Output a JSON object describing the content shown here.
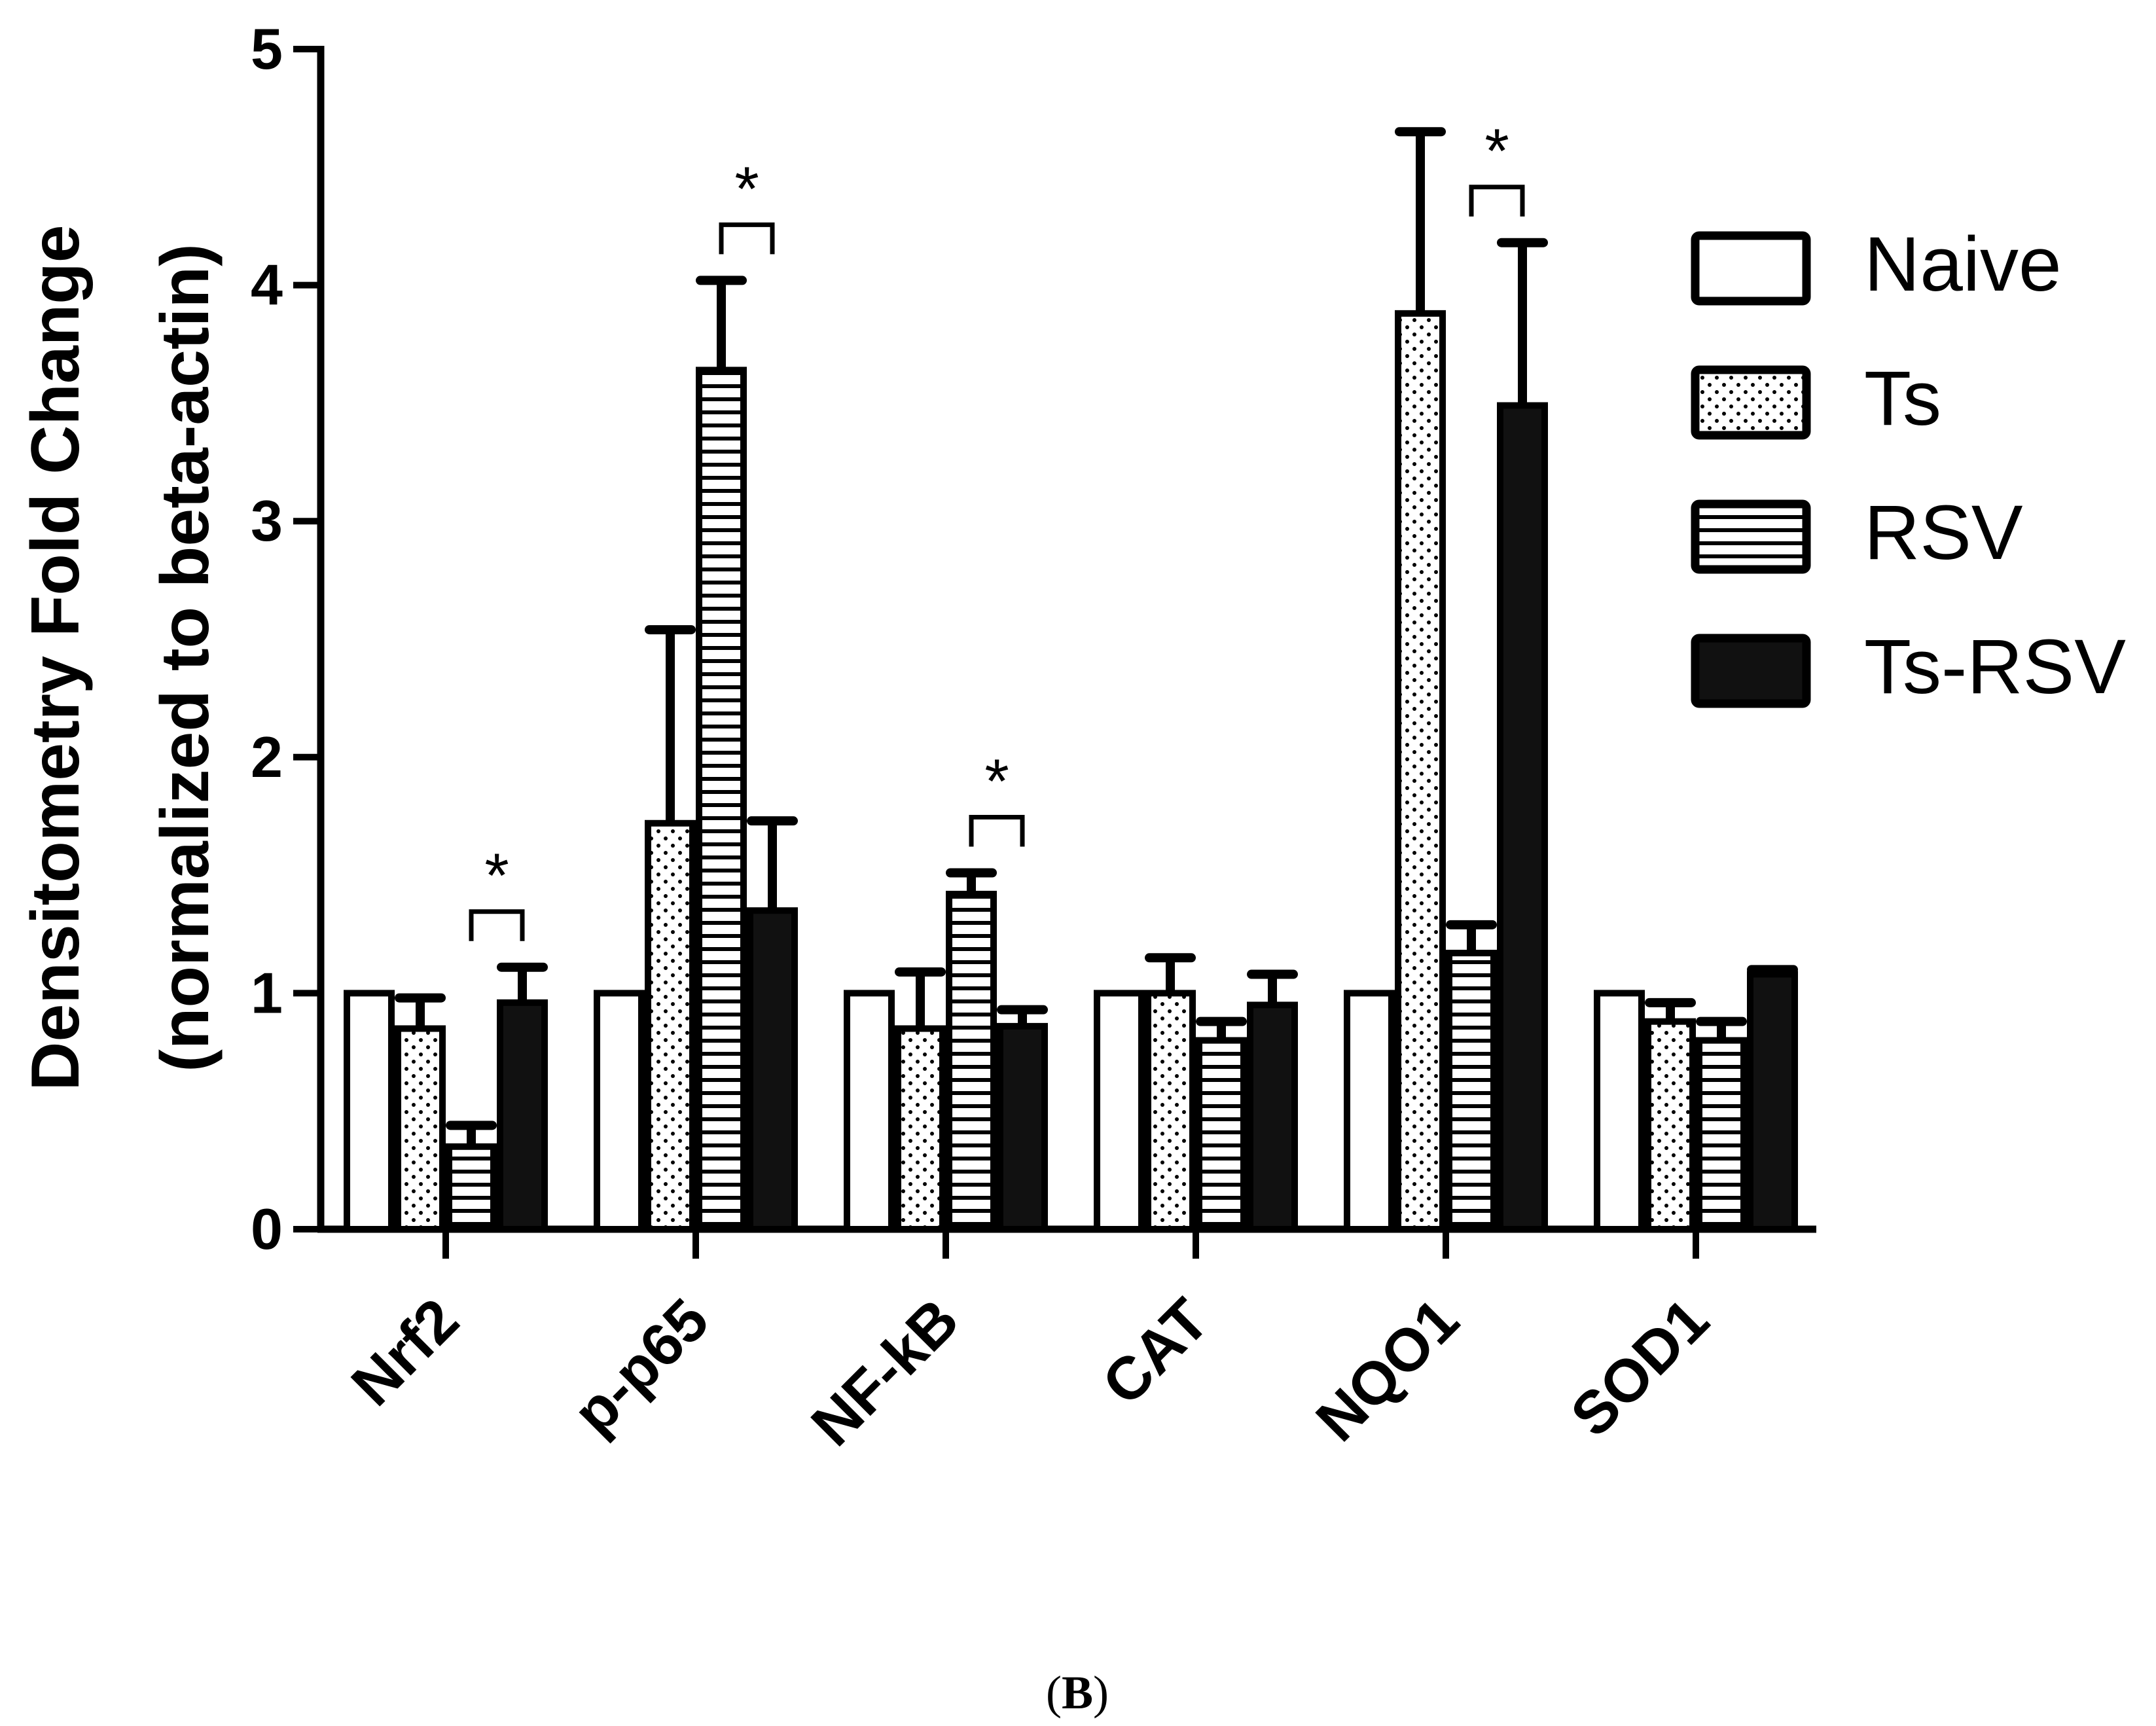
{
  "chart_data": {
    "type": "bar",
    "ylabel_line1": "Densitometry Fold Change",
    "ylabel_line2": "(normalized to beta-actin)",
    "ylim": [
      0,
      5
    ],
    "yticks": [
      "0",
      "1",
      "2",
      "3",
      "4",
      "5"
    ],
    "categories": [
      "Nrf2",
      "p-p65",
      "NF-kB",
      "CAT",
      "NQO1",
      "SOD1"
    ],
    "series": [
      {
        "name": "Naive",
        "pattern": "open",
        "values": [
          1.0,
          1.0,
          1.0,
          1.0,
          1.0,
          1.0
        ],
        "errors": [
          0,
          0,
          0,
          0,
          0,
          0
        ]
      },
      {
        "name": "Ts",
        "pattern": "dotted",
        "values": [
          0.85,
          1.72,
          0.85,
          1.0,
          3.88,
          0.88
        ],
        "errors": [
          0.13,
          0.82,
          0.24,
          0.15,
          0.77,
          0.08
        ]
      },
      {
        "name": "RSV",
        "pattern": "horizontal-lines",
        "values": [
          0.35,
          3.64,
          1.42,
          0.8,
          1.17,
          0.8
        ],
        "errors": [
          0.09,
          0.38,
          0.09,
          0.08,
          0.12,
          0.08
        ]
      },
      {
        "name": "Ts-RSV",
        "pattern": "solid",
        "values": [
          0.96,
          1.35,
          0.86,
          0.95,
          3.49,
          1.08
        ],
        "errors": [
          0.15,
          0.38,
          0.07,
          0.13,
          0.69,
          0.02
        ]
      }
    ],
    "significance": [
      {
        "category": "Nrf2",
        "between": [
          "RSV",
          "Ts-RSV"
        ],
        "label": "*"
      },
      {
        "category": "p-p65",
        "between": [
          "RSV",
          "Ts-RSV"
        ],
        "label": "*"
      },
      {
        "category": "NF-kB",
        "between": [
          "RSV",
          "Ts-RSV"
        ],
        "label": "*"
      },
      {
        "category": "NQO1",
        "between": [
          "RSV",
          "Ts-RSV"
        ],
        "label": "*"
      }
    ],
    "legend_position": "right"
  },
  "caption": {
    "open": "(",
    "letter": "B",
    "close": ")"
  }
}
